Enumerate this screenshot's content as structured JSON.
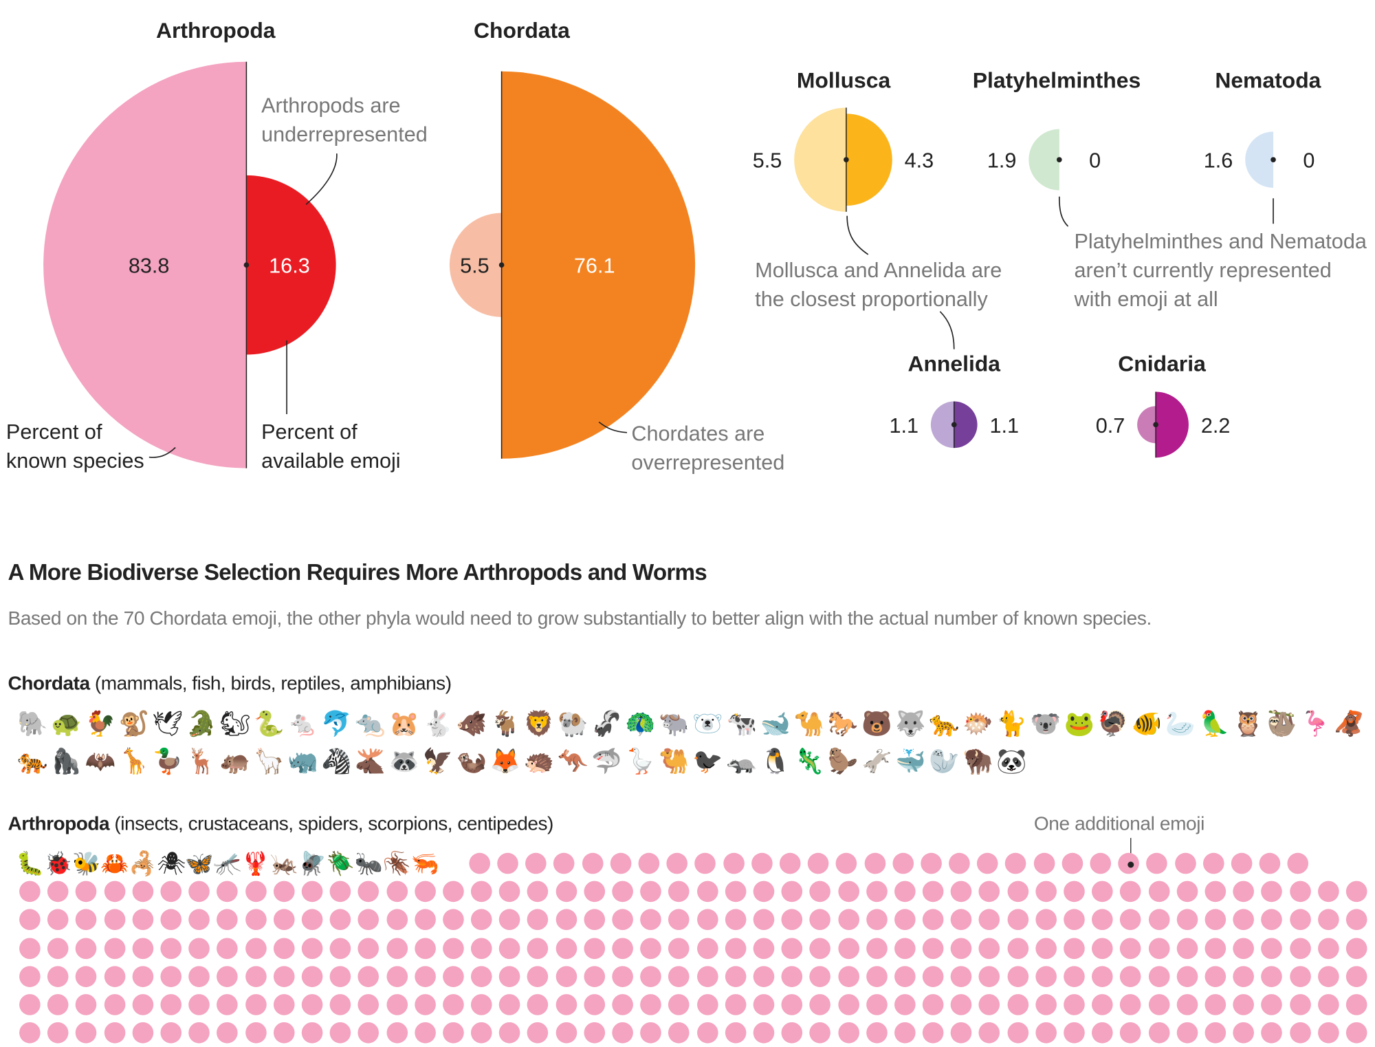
{
  "colors": {
    "arthropoda_species": "#f4a3c0",
    "arthropoda_emoji": "#e91c24",
    "chordata_species": "#f7bea5",
    "chordata_emoji": "#f38320",
    "mollusca_species": "#fde19c",
    "mollusca_emoji": "#fbb41a",
    "platyhelminthes_species": "#cfe8cf",
    "nematoda_species": "#d4e4f4",
    "annelida_species": "#bda7d4",
    "annelida_emoji": "#76409a",
    "cnidaria_species": "#c97cb6",
    "cnidaria_emoji": "#b21c8d",
    "dot": "#f4a3c0"
  },
  "chart_data": {
    "type": "paired-semicircles",
    "unit": "percent",
    "series_labels": {
      "left": "Percent of known species",
      "right": "Percent of available emoji"
    },
    "phyla": [
      {
        "name": "Arthropoda",
        "species": 83.8,
        "emoji": 16.3,
        "species_label": "83.8",
        "emoji_label": "16.3"
      },
      {
        "name": "Chordata",
        "species": 5.5,
        "emoji": 76.1,
        "species_label": "5.5",
        "emoji_label": "76.1"
      },
      {
        "name": "Mollusca",
        "species": 5.5,
        "emoji": 4.3,
        "species_label": "5.5",
        "emoji_label": "4.3"
      },
      {
        "name": "Platyhelminthes",
        "species": 1.9,
        "emoji": 0,
        "species_label": "1.9",
        "emoji_label": "0"
      },
      {
        "name": "Nematoda",
        "species": 1.6,
        "emoji": 0,
        "species_label": "1.6",
        "emoji_label": "0"
      },
      {
        "name": "Annelida",
        "species": 1.1,
        "emoji": 1.1,
        "species_label": "1.1",
        "emoji_label": "1.1"
      },
      {
        "name": "Cnidaria",
        "species": 0.7,
        "emoji": 2.2,
        "species_label": "0.7",
        "emoji_label": "2.2"
      }
    ],
    "annotations": {
      "arthropods": [
        "Arthropods are",
        "underrepresented"
      ],
      "species": [
        "Percent of",
        "known species"
      ],
      "emoji": [
        "Percent of",
        "available emoji"
      ],
      "chordates": [
        "Chordates are",
        "overrepresented"
      ],
      "mollusca": [
        "Mollusca and Annelida are",
        "the closest proportionally"
      ],
      "worms": [
        "Platyhelminthes and Nematoda",
        "aren’t currently represented",
        "with emoji at all"
      ]
    }
  },
  "section": {
    "title": "A More Biodiverse Selection Requires More Arthropods and Worms",
    "subtitle": "Based on the 70 Chordata emoji, the other phyla would need to grow substantially to better align with the actual number of known species.",
    "chordata": {
      "name": "Chordata",
      "desc": " (mammals, fish, birds, reptiles, amphibians)",
      "row1": [
        "🐘",
        "🐢",
        "🐓",
        "🐒",
        "🕊",
        "🐊",
        "🐿",
        "🐍",
        "🐁",
        "🐬",
        "🐀",
        "🐹",
        "🐇",
        "🐗",
        "🐐",
        "🦁",
        "🐏",
        "🦨",
        "🦚",
        "🐃",
        "🐻‍❄️",
        "🐄",
        "🐋",
        "🐪",
        "🐎",
        "🐻",
        "🐺",
        "🐆",
        "🐡",
        "🐈",
        "🐨",
        "🐸",
        "🦃",
        "🐠",
        "🦢",
        "🦜",
        "🦉",
        "🦥",
        "🦩",
        "🦧"
      ],
      "row2": [
        "🐅",
        "🦍",
        "🦇",
        "🦒",
        "🦆",
        "🦌",
        "🦛",
        "🦙",
        "🦏",
        "🦓",
        "🫎",
        "🦝",
        "🦅",
        "🦦",
        "🦊",
        "🦔",
        "🦘",
        "🦈",
        "🪿",
        "🐫",
        "🐦‍⬛",
        "🦡",
        "🐧",
        "🦎",
        "🦫",
        "🫏",
        "🐳",
        "🦭",
        "🦬",
        "🐼"
      ]
    },
    "arthropoda": {
      "name": "Arthropoda",
      "desc": " (insects, crustaceans, spiders, scorpions, centipedes)",
      "emoji": [
        "🐛",
        "🐞",
        "🐝",
        "🦀",
        "🦂",
        "🕷",
        "🦋",
        "🦟",
        "🦞",
        "🦗",
        "🪰",
        "🪲",
        "🐜",
        "🪳",
        "🦐"
      ],
      "additional_label": "One additional emoji",
      "first_row_dots": 30,
      "dots_per_row": 48,
      "visible_full_rows": 6
    }
  }
}
